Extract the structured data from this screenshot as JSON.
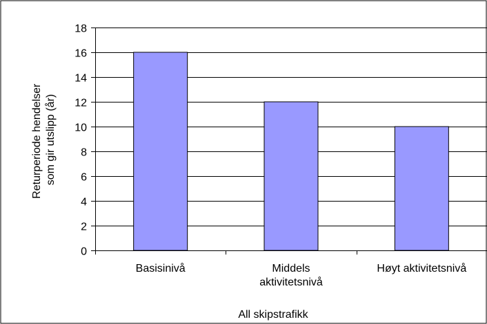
{
  "chart_data": {
    "type": "bar",
    "title": "",
    "xlabel": "All skipstrafikk",
    "ylabel_lines": [
      "Returperiode hendelser",
      "som gir utslipp (år)"
    ],
    "categories": [
      [
        "Basisinivå"
      ],
      [
        "Middels",
        "aktivitetsnivå"
      ],
      [
        "Høyt aktivitetsnivå"
      ]
    ],
    "values": [
      16,
      12,
      10
    ],
    "ylim": [
      0,
      18
    ],
    "yticks": [
      0,
      2,
      4,
      6,
      8,
      10,
      12,
      14,
      16,
      18
    ],
    "grid": true,
    "legend": "none",
    "colors": {
      "bar_fill": "#9999ff",
      "bar_stroke": "#000000",
      "grid": "#000000",
      "frame": "#000000",
      "background": "#ffffff"
    }
  }
}
